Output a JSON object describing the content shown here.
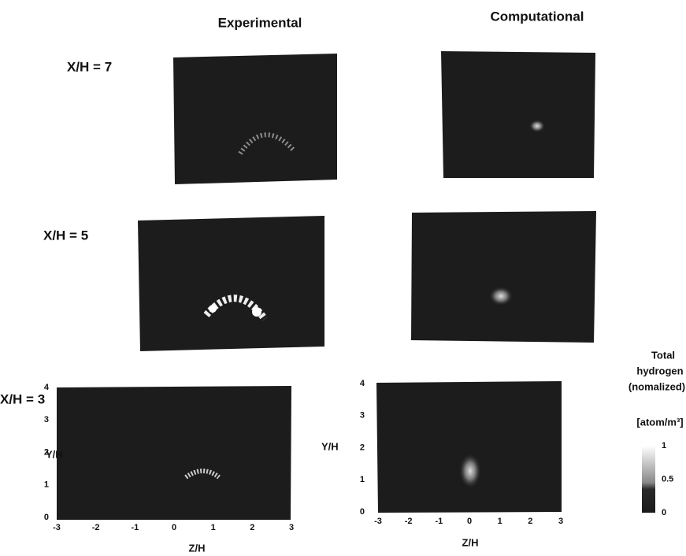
{
  "header": {
    "columns": [
      "Experimental",
      "Computational"
    ]
  },
  "rows": [
    {
      "label": "X/H = 7"
    },
    {
      "label": "X/H = 5"
    },
    {
      "label": "X/H = 3"
    }
  ],
  "axes": {
    "x_label": "Z/H",
    "y_label": "Y/H",
    "xticks": [
      -3,
      -2,
      -1,
      0,
      1,
      2,
      3
    ],
    "yticks": [
      0,
      1,
      2,
      3,
      4
    ]
  },
  "colorbar": {
    "title": [
      "Total",
      "hydrogen",
      "(nomalized)"
    ],
    "unit": "[atom/m³]",
    "ticks": [
      0,
      0.5,
      1
    ]
  }
}
